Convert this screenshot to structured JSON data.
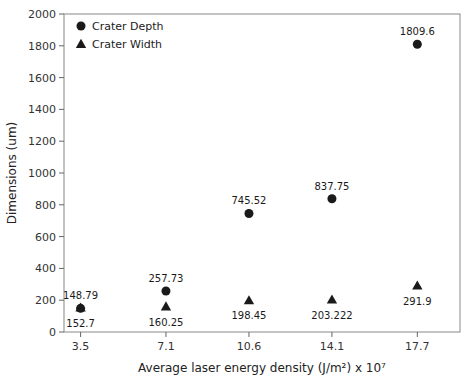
{
  "chart_data": {
    "type": "scatter",
    "x": [
      3.5,
      7.1,
      10.6,
      14.1,
      17.7
    ],
    "series": [
      {
        "name": "Crater Depth",
        "color": "#1a1a1a",
        "marker": "circle",
        "values": [
          148.79,
          257.73,
          745.52,
          837.75,
          1809.6
        ]
      },
      {
        "name": "Crater Width",
        "color": "#1a1a1a",
        "marker": "triangle",
        "values": [
          152.7,
          160.25,
          198.45,
          203.222,
          291.9
        ]
      }
    ],
    "x_label": "Average laser energy density (J/m²) x 10⁷",
    "y_label": "Dimensions (um)",
    "xlim": [
      2.8,
      19.5
    ],
    "ylim": [
      0,
      2000
    ],
    "xticks": [
      3.5,
      7.1,
      10.6,
      14.1,
      17.7
    ],
    "yticks": [
      0,
      200,
      400,
      600,
      800,
      1000,
      1200,
      1400,
      1600,
      1800,
      2000
    ],
    "data_labels": true,
    "legend": "upper left",
    "grid": false
  }
}
